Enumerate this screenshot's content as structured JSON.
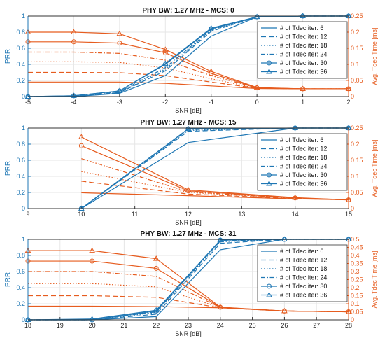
{
  "figure": {
    "colors": {
      "left": "#1f77b4",
      "right": "#e65c1f",
      "axis": "#333333",
      "grid": "#e6e6e6"
    }
  },
  "legend_entries": [
    "# of Tdec iter: 6",
    "# of Tdec iter: 12",
    "# of Tdec iter: 18",
    "# of Tdec iter: 24",
    "# of Tdec iter: 30",
    "# of Tdec iter: 36"
  ],
  "chart_data": [
    {
      "type": "line",
      "title": "PHY BW: 1.27 MHz - MCS: 0",
      "xlabel": "SNR [dB]",
      "ylabel_left": "PRR",
      "ylabel_right": "Avg. Tdec Time [ms]",
      "x": [
        -5,
        -4,
        -3,
        -2,
        -1,
        0,
        1,
        2
      ],
      "xlim": [
        -5,
        2
      ],
      "ylim_left": [
        0,
        1
      ],
      "ylim_right": [
        0,
        0.25
      ],
      "xticks": [
        "-5",
        "-4",
        "-3",
        "-2",
        "-1",
        "0",
        "1",
        "2"
      ],
      "yticks_left": [
        "0",
        "0.2",
        "0.4",
        "0.6",
        "0.8",
        "1"
      ],
      "yticks_right": [
        "0",
        "0.05",
        "0.1",
        "0.15",
        "0.2",
        "0.25"
      ],
      "grid": true,
      "legend_position": "right",
      "prr_series": [
        {
          "name": "# of Tdec iter: 6",
          "values": [
            0,
            0,
            0.04,
            0.26,
            0.75,
            0.99,
            1.0,
            1.0
          ]
        },
        {
          "name": "# of Tdec iter: 12",
          "values": [
            0,
            0,
            0.05,
            0.32,
            0.81,
            0.99,
            1.0,
            1.0
          ]
        },
        {
          "name": "# of Tdec iter: 18",
          "values": [
            0,
            0,
            0.05,
            0.34,
            0.82,
            0.99,
            1.0,
            1.0
          ]
        },
        {
          "name": "# of Tdec iter: 24",
          "values": [
            0,
            0,
            0.06,
            0.36,
            0.83,
            0.99,
            1.0,
            1.0
          ]
        },
        {
          "name": "# of Tdec iter: 30",
          "values": [
            0,
            0.01,
            0.07,
            0.4,
            0.84,
            0.99,
            1.0,
            1.0
          ]
        },
        {
          "name": "# of Tdec iter: 36",
          "values": [
            0,
            0.01,
            0.07,
            0.41,
            0.85,
            0.99,
            1.0,
            1.0
          ]
        }
      ],
      "tdec_series": [
        {
          "name": "# of Tdec iter: 6",
          "values": [
            0.045,
            0.045,
            0.045,
            0.041,
            0.033,
            0.025,
            0.024,
            0.024
          ]
        },
        {
          "name": "# of Tdec iter: 12",
          "values": [
            0.075,
            0.075,
            0.074,
            0.065,
            0.045,
            0.026,
            0.024,
            0.024
          ]
        },
        {
          "name": "# of Tdec iter: 18",
          "values": [
            0.108,
            0.108,
            0.106,
            0.089,
            0.055,
            0.026,
            0.024,
            0.024
          ]
        },
        {
          "name": "# of Tdec iter: 24",
          "values": [
            0.138,
            0.138,
            0.134,
            0.113,
            0.065,
            0.027,
            0.024,
            0.024
          ]
        },
        {
          "name": "# of Tdec iter: 30",
          "values": [
            0.17,
            0.17,
            0.166,
            0.136,
            0.072,
            0.027,
            0.024,
            0.024
          ]
        },
        {
          "name": "# of Tdec iter: 36",
          "values": [
            0.2,
            0.2,
            0.195,
            0.146,
            0.078,
            0.028,
            0.024,
            0.024
          ]
        }
      ]
    },
    {
      "type": "line",
      "title": "PHY BW: 1.27 MHz - MCS: 15",
      "xlabel": "SNR [dB]",
      "ylabel_left": "PRR",
      "ylabel_right": "Avg. Tdec Time [ms]",
      "x": [
        10,
        12,
        14,
        15
      ],
      "xlim": [
        9,
        15
      ],
      "ylim_left": [
        0,
        1
      ],
      "ylim_right": [
        0,
        0.25
      ],
      "xticks": [
        "9",
        "10",
        "11",
        "12",
        "13",
        "14",
        "15"
      ],
      "yticks_left": [
        "0",
        "0.2",
        "0.4",
        "0.6",
        "0.8",
        "1"
      ],
      "yticks_right": [
        "0",
        "0.05",
        "0.1",
        "0.15",
        "0.2",
        "0.25"
      ],
      "grid": true,
      "legend_position": "right",
      "prr_series": [
        {
          "name": "# of Tdec iter: 6",
          "values": [
            0,
            0.82,
            1.0,
            1.0
          ]
        },
        {
          "name": "# of Tdec iter: 12",
          "values": [
            0,
            0.96,
            1.0,
            1.0
          ]
        },
        {
          "name": "# of Tdec iter: 18",
          "values": [
            0,
            0.97,
            1.0,
            1.0
          ]
        },
        {
          "name": "# of Tdec iter: 24",
          "values": [
            0,
            0.98,
            1.0,
            1.0
          ]
        },
        {
          "name": "# of Tdec iter: 30",
          "values": [
            0,
            0.99,
            1.0,
            1.0
          ]
        },
        {
          "name": "# of Tdec iter: 36",
          "values": [
            0,
            0.99,
            1.0,
            1.0
          ]
        }
      ],
      "tdec_series": [
        {
          "name": "# of Tdec iter: 6",
          "values": [
            0.049,
            0.04,
            0.03,
            0.027
          ]
        },
        {
          "name": "# of Tdec iter: 12",
          "values": [
            0.085,
            0.045,
            0.031,
            0.027
          ]
        },
        {
          "name": "# of Tdec iter: 18",
          "values": [
            0.115,
            0.05,
            0.032,
            0.027
          ]
        },
        {
          "name": "# of Tdec iter: 24",
          "values": [
            0.155,
            0.052,
            0.032,
            0.027
          ]
        },
        {
          "name": "# of Tdec iter: 30",
          "values": [
            0.195,
            0.055,
            0.033,
            0.027
          ]
        },
        {
          "name": "# of Tdec iter: 36",
          "values": [
            0.222,
            0.058,
            0.034,
            0.027
          ]
        }
      ]
    },
    {
      "type": "line",
      "title": "PHY BW: 1.27 MHz - MCS: 31",
      "xlabel": "SNR [dB]",
      "ylabel_left": "PRR",
      "ylabel_right": "Avg. Tdec Time [ms]",
      "x": [
        18,
        20,
        22,
        24,
        26,
        28
      ],
      "xlim": [
        18,
        28
      ],
      "ylim_left": [
        0,
        1
      ],
      "ylim_right": [
        0,
        0.5
      ],
      "xticks": [
        "18",
        "19",
        "20",
        "21",
        "22",
        "23",
        "24",
        "25",
        "26",
        "27",
        "28"
      ],
      "yticks_left": [
        "0",
        "0.2",
        "0.4",
        "0.6",
        "0.8",
        "1"
      ],
      "yticks_right": [
        "0",
        "0.05",
        "0.1",
        "0.15",
        "0.2",
        "0.25",
        "0.3",
        "0.35",
        "0.4",
        "0.45",
        "0.5"
      ],
      "grid": true,
      "legend_position": "right",
      "prr_series": [
        {
          "name": "# of Tdec iter: 6",
          "values": [
            0,
            0,
            0.04,
            0.87,
            1.0,
            1.0
          ]
        },
        {
          "name": "# of Tdec iter: 12",
          "values": [
            0,
            0,
            0.07,
            0.95,
            1.0,
            1.0
          ]
        },
        {
          "name": "# of Tdec iter: 18",
          "values": [
            0,
            0,
            0.09,
            0.97,
            1.0,
            1.0
          ]
        },
        {
          "name": "# of Tdec iter: 24",
          "values": [
            0,
            0,
            0.1,
            0.98,
            1.0,
            1.0
          ]
        },
        {
          "name": "# of Tdec iter: 30",
          "values": [
            0,
            0,
            0.11,
            0.99,
            1.0,
            1.0
          ]
        },
        {
          "name": "# of Tdec iter: 36",
          "values": [
            0,
            0.01,
            0.12,
            0.99,
            1.0,
            1.0
          ]
        }
      ],
      "tdec_series": [
        {
          "name": "# of Tdec iter: 6",
          "values": [
            0.085,
            0.085,
            0.082,
            0.075,
            0.055,
            0.05
          ]
        },
        {
          "name": "# of Tdec iter: 12",
          "values": [
            0.15,
            0.15,
            0.14,
            0.075,
            0.055,
            0.05
          ]
        },
        {
          "name": "# of Tdec iter: 18",
          "values": [
            0.225,
            0.225,
            0.205,
            0.076,
            0.055,
            0.05
          ]
        },
        {
          "name": "# of Tdec iter: 24",
          "values": [
            0.3,
            0.3,
            0.27,
            0.077,
            0.055,
            0.05
          ]
        },
        {
          "name": "# of Tdec iter: 30",
          "values": [
            0.365,
            0.365,
            0.32,
            0.078,
            0.055,
            0.05
          ]
        },
        {
          "name": "# of Tdec iter: 36",
          "values": [
            0.43,
            0.43,
            0.38,
            0.079,
            0.055,
            0.05
          ]
        }
      ]
    }
  ]
}
